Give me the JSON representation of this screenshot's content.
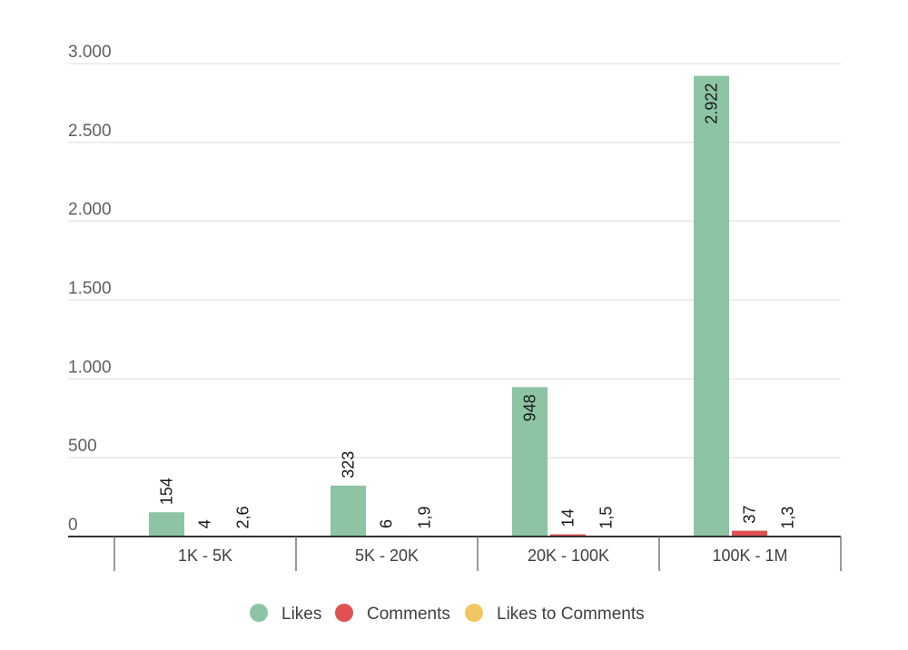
{
  "chart_data": {
    "type": "bar",
    "categories": [
      "1K - 5K",
      "5K - 20K",
      "20K - 100K",
      "100K - 1M"
    ],
    "series": [
      {
        "name": "Likes",
        "color": "#8cc4a4",
        "values": [
          154,
          323,
          948,
          2922
        ],
        "labels": [
          "154",
          "323",
          "948",
          "2.922"
        ]
      },
      {
        "name": "Comments",
        "color": "#e05252",
        "values": [
          4,
          6,
          14,
          37
        ],
        "labels": [
          "4",
          "6",
          "14",
          "37"
        ]
      },
      {
        "name": "Likes to Comments",
        "color": "#f2c661",
        "values": [
          2.6,
          1.9,
          1.5,
          1.3
        ],
        "labels": [
          "2,6",
          "1,9",
          "1,5",
          "1,3"
        ]
      }
    ],
    "y_ticks": [
      {
        "value": 0,
        "label": "0"
      },
      {
        "value": 500,
        "label": "500"
      },
      {
        "value": 1000,
        "label": "1.000"
      },
      {
        "value": 1500,
        "label": "1.500"
      },
      {
        "value": 2000,
        "label": "2.000"
      },
      {
        "value": 2500,
        "label": "2.500"
      },
      {
        "value": 3000,
        "label": "3.000"
      }
    ],
    "ylim": [
      0,
      3000
    ],
    "grid": true,
    "legend": "bottom"
  }
}
